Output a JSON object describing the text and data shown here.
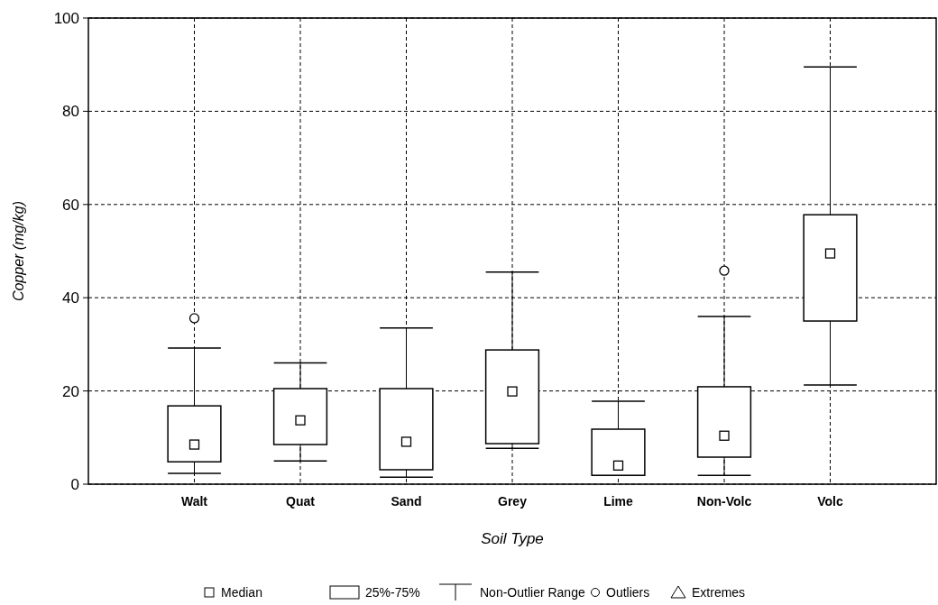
{
  "chart_data": {
    "type": "box",
    "xlabel": "Soil Type",
    "ylabel": "Copper (mg/kg)",
    "categories": [
      "Walt",
      "Quat",
      "Sand",
      "Grey",
      "Lime",
      "Non-Volc",
      "Volc"
    ],
    "ylim": [
      0,
      100
    ],
    "yticks": [
      0,
      20,
      40,
      60,
      80,
      100
    ],
    "grid": true,
    "annotations": [
      "Median",
      "25%-75%",
      "Non-Outlier Range",
      "Outliers",
      "Extremes"
    ],
    "series": [
      {
        "color": "#000000",
        "boxes": [
          {
            "low": 2.3,
            "q1": 4.8,
            "median": 8.5,
            "q3": 16.8,
            "high": 29.2,
            "outliers": [
              35.6
            ]
          },
          {
            "low": 5,
            "q1": 8.5,
            "median": 13.7,
            "q3": 20.5,
            "high": 26
          },
          {
            "low": 1.5,
            "q1": 3.1,
            "median": 9.1,
            "q3": 20.5,
            "high": 33.5
          },
          {
            "low": 7.7,
            "q1": 8.7,
            "median": 19.9,
            "q3": 28.8,
            "high": 45.5
          },
          {
            "low": 1.9,
            "q1": 1.9,
            "median": 4,
            "q3": 11.8,
            "high": 17.8
          },
          {
            "low": 1.9,
            "q1": 5.8,
            "median": 10.4,
            "q3": 20.9,
            "high": 36,
            "outliers": [
              45.8
            ]
          },
          {
            "low": 21.3,
            "q1": 35,
            "median": 49.5,
            "q3": 57.8,
            "high": 89.5
          }
        ]
      }
    ]
  }
}
